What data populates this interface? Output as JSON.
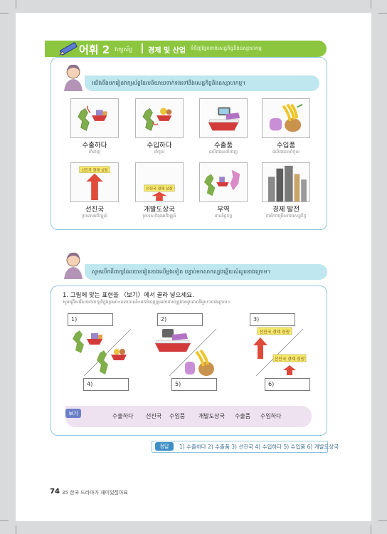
{
  "header": {
    "title": "어휘 2",
    "title_km": "វាក្យស័ព្ទ",
    "subtitle": "경제 및 산업",
    "subtitle_km": "ទំនិញផ្នែកខាងសេដ្ឋកិច្ចនិងឧស្សាហកម្ម"
  },
  "intro": {
    "bubble": "យើងនឹងមករៀនវាក្យស័ព្ទដែលនិយាយទាក់ទងទៅនឹងសេដ្ឋកិច្ចនិងឧស្សាហកម្ម។"
  },
  "vocab": [
    {
      "ko": "수출하다",
      "km": "នាំចេញ",
      "icon": "export-map-ship-icon"
    },
    {
      "ko": "수입하다",
      "km": "នាំចូល",
      "icon": "import-map-ship-icon"
    },
    {
      "ko": "수출품",
      "km": "ផលិតផលនាំចេញ",
      "icon": "export-goods-ship-car-icon"
    },
    {
      "ko": "수입품",
      "km": "ផលិតផលនាំចូល",
      "icon": "import-goods-fruit-icon"
    },
    {
      "ko": "선진국",
      "km": "ប្រទេសអភិវឌ្ឍន៍",
      "icon": "developed-country-tall-arrow-icon"
    },
    {
      "ko": "개발도상국",
      "km": "ប្រទេសកំពុងអភិវឌ្ឍន៍",
      "icon": "developing-country-short-arrow-icon"
    },
    {
      "ko": "무역",
      "km": "ពាណិជ្ជកម្ម",
      "icon": "trade-map-ship-icon"
    },
    {
      "ko": "경제 발전",
      "km": "ការរីកចម្រើនខាងសេដ្ឋកិច្ច",
      "icon": "economic-development-buildings-icon"
    }
  ],
  "practice": {
    "bubble": "សូមលើកពីពាក្យដែលបានរៀនខាងលើម្ដងទៀត បន្ទាប់មកសាកល្បងឆ្លើយសំណួរខាងក្រោម។",
    "question": "1. 그림에 맞는 표현을 〈보기〉에서 골라 넣으세요.",
    "question_km": "សូមជ្រើសរើសយកពាក្យពីក្នុងប្រអប់«ឧទាហរណ៍»មកបំពេញប្រអប់ដោយត្រូវតាមរូបភាពនីមួយៗខាងក្រោម។",
    "boxes": [
      "1)",
      "2)",
      "3)",
      "4)",
      "5)",
      "6)"
    ],
    "sign_text": "선진국 경제 성장",
    "bogi_label": "보기",
    "bogi_words": [
      "수출하다",
      "선진국",
      "수입품",
      "개발도상국",
      "수출품",
      "수입하다"
    ],
    "answer_label": "정답",
    "answer_text": "1) 수출하다 2) 수출품 3) 선진국 4) 수입하다 5) 수입품 6) 개발도상국"
  },
  "footer": {
    "page_number": "74",
    "page_title": "35 한국 드라마가 재미있잖아요"
  },
  "colors": {
    "header_green": "#8cc63f",
    "bubble_teal": "#bfe7ef",
    "box_border": "#8fc6de",
    "bogi_pink": "#eee1f0",
    "arrow_red": "#e04a3b",
    "sign_yellow": "#f5ea6a"
  }
}
